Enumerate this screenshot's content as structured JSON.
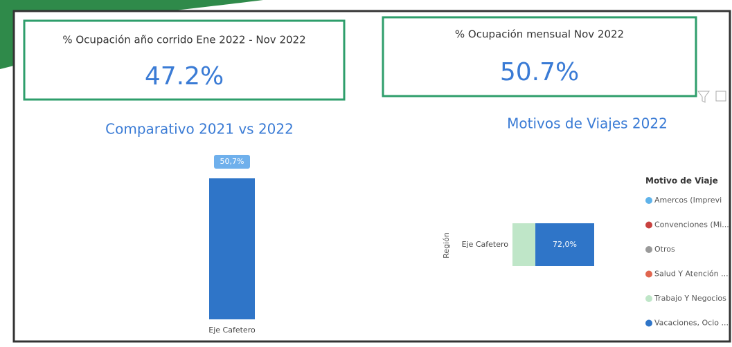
{
  "cards": [
    {
      "title": "% Ocupación año corrido Ene 2022 - Nov 2022",
      "value": "47.2%"
    },
    {
      "title": "% Ocupación mensual Nov 2022",
      "value": "50.7%"
    }
  ],
  "chart_data": [
    {
      "type": "bar",
      "title": "Comparativo 2021 vs 2022",
      "categories": [
        "Eje Cafetero"
      ],
      "values": [
        50.7
      ],
      "value_labels": [
        "50,7%"
      ],
      "color": "#2f75c8"
    },
    {
      "type": "barh",
      "stacked": true,
      "title": "Motivos de Viajes 2022",
      "y_label": "Región",
      "categories": [
        "Eje Cafetero"
      ],
      "legend_title": "Motivo de Viaje",
      "legend": "right",
      "series": [
        {
          "name": "Amercos (Imprevi",
          "color": "#5fb3ea",
          "values": [
            null
          ],
          "value_labels": [
            null
          ]
        },
        {
          "name": "Convenciones (Mi...",
          "color": "#c8413f",
          "values": [
            null
          ],
          "value_labels": [
            null
          ]
        },
        {
          "name": "Otros",
          "color": "#9a9a9a",
          "values": [
            null
          ],
          "value_labels": [
            null
          ]
        },
        {
          "name": "Salud Y Atención ...",
          "color": "#e0664f",
          "values": [
            null
          ],
          "value_labels": [
            null
          ]
        },
        {
          "name": "Trabajo Y Negocios",
          "color": "#bfe6c8",
          "values": [
            28.0
          ],
          "value_labels": [
            null
          ]
        },
        {
          "name": "Vacaciones, Ocio ...",
          "color": "#2f75c8",
          "values": [
            72.0
          ],
          "value_labels": [
            "72,0%"
          ]
        }
      ]
    }
  ]
}
